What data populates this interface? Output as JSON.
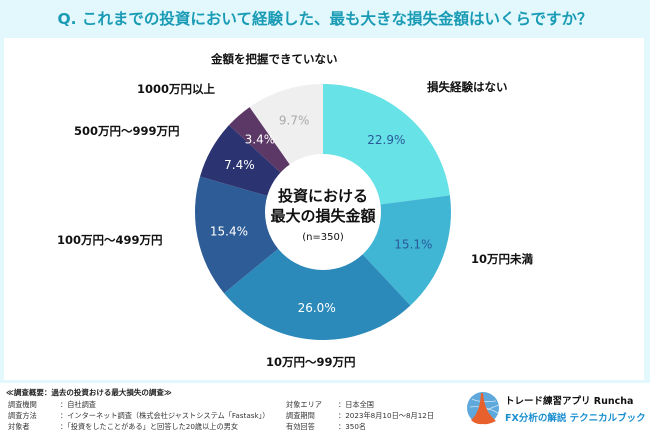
{
  "header": {
    "title": "Q. これまでの投資において経験した、最も大きな損失金額はいくらですか？"
  },
  "chart_data": {
    "type": "pie",
    "variant": "donut",
    "title": "投資における最大の損失金額",
    "subtitle": "(n=350)",
    "start": "top",
    "direction": "clockwise",
    "slices": [
      {
        "label": "損失経験はない",
        "value": 22.9,
        "display": "22.9%",
        "color": "#67e2e6",
        "text_color": "#2a5a9a"
      },
      {
        "label": "10万円未満",
        "value": 15.1,
        "display": "15.1%",
        "color": "#40b6d4",
        "text_color": "#2a5a9a"
      },
      {
        "label": "10万円〜99万円",
        "value": 26.0,
        "display": "26.0%",
        "color": "#2b8aba",
        "text_color": "#ffffff"
      },
      {
        "label": "100万円〜499万円",
        "value": 15.4,
        "display": "15.4%",
        "color": "#2e5c96",
        "text_color": "#ffffff"
      },
      {
        "label": "500万円〜999万円",
        "value": 7.4,
        "display": "7.4%",
        "color": "#2b3370",
        "text_color": "#ffffff"
      },
      {
        "label": "1000万円以上",
        "value": 3.4,
        "display": "3.4%",
        "color": "#5c3866",
        "text_color": "#ffffff"
      },
      {
        "label": "金額を把握できていない",
        "value": 9.7,
        "display": "9.7%",
        "color": "#efefef",
        "text_color": "#aaaaaa"
      }
    ],
    "center_text": [
      "投資における",
      "最大の損失金額"
    ],
    "center_sub": "(n=350)"
  },
  "footer": {
    "heading": "≪調査概要：過去の投資おける最大損失の調査≫",
    "rows_left": [
      {
        "key": "調査機関",
        "value": "：自社調査"
      },
      {
        "key": "調査方法",
        "value": "：インターネット調査（株式会社ジャストシステム「Fastask」）"
      },
      {
        "key": "対象者",
        "value": "：「投資をしたことがある」と回答した20歳以上の男女"
      }
    ],
    "rows_right": [
      {
        "key": "対象エリア",
        "value": "：日本全国"
      },
      {
        "key": "調査期間",
        "value": "：2023年8月10日〜8月12日"
      },
      {
        "key": "有効回答",
        "value": "：350名"
      }
    ],
    "brand": {
      "line1": "トレード練習アプリ Runcha",
      "line2": "FX分析の解説 テクニカルブック",
      "logo_icon": "runcha-logo-icon"
    }
  }
}
